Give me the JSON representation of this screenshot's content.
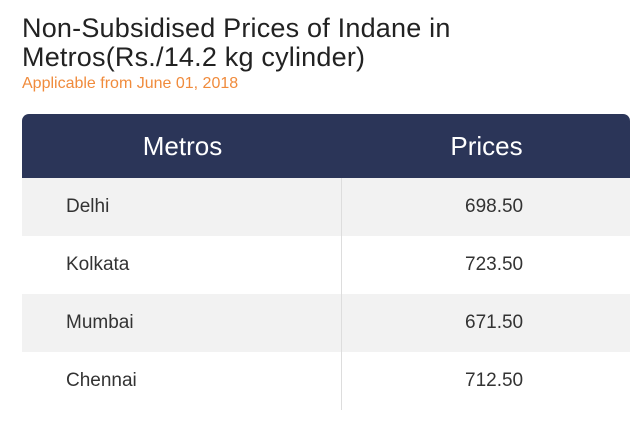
{
  "title": {
    "line1": "Non-Subsidised Prices of Indane in",
    "line2": "Metros(Rs./14.2 kg cylinder)"
  },
  "subtitle": "Applicable from June 01, 2018",
  "table": {
    "headers": [
      "Metros",
      "Prices"
    ],
    "rows": [
      {
        "metro": "Delhi",
        "price": "698.50"
      },
      {
        "metro": "Kolkata",
        "price": "723.50"
      },
      {
        "metro": "Mumbai",
        "price": "671.50"
      },
      {
        "metro": "Chennai",
        "price": "712.50"
      }
    ]
  },
  "colors": {
    "header_bg": "#2b3558",
    "subtitle": "#f08b3c",
    "row_alt": "#f2f2f2"
  }
}
